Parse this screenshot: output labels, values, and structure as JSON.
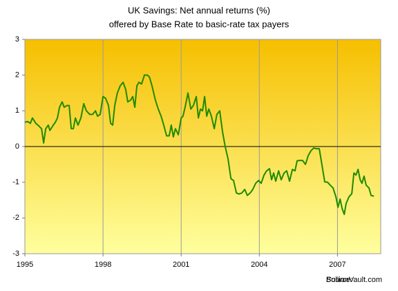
{
  "chart_data": {
    "type": "line",
    "title": "UK Savings: Net annual returns (%)",
    "subtitle": "offered by Base Rate to basic-rate tax payers",
    "source_label": "Source:",
    "source": "BullionVault.com",
    "xlim": [
      1995,
      2008.66
    ],
    "xticks": [
      1995,
      1998,
      2001,
      2004,
      2007
    ],
    "ylim": [
      -3,
      3
    ],
    "yticks": [
      -3,
      -2,
      -1,
      0,
      1,
      2,
      3
    ],
    "grid": "x",
    "series": [
      {
        "color": "#1f8a00",
        "x": [
          1995.0,
          1995.11,
          1995.21,
          1995.29,
          1995.42,
          1995.53,
          1995.64,
          1995.72,
          1995.8,
          1995.9,
          1995.96,
          1996.09,
          1996.17,
          1996.25,
          1996.33,
          1996.43,
          1996.51,
          1996.62,
          1996.7,
          1996.78,
          1996.86,
          1996.94,
          1997.04,
          1997.15,
          1997.26,
          1997.36,
          1997.49,
          1997.6,
          1997.71,
          1997.79,
          1997.89,
          1998.0,
          1998.1,
          1998.21,
          1998.29,
          1998.37,
          1998.45,
          1998.55,
          1998.66,
          1998.77,
          1998.87,
          1998.95,
          1999.06,
          1999.14,
          1999.22,
          1999.3,
          1999.38,
          1999.48,
          1999.59,
          1999.7,
          1999.78,
          1999.88,
          2000.01,
          2000.12,
          2000.23,
          2000.33,
          2000.44,
          2000.54,
          2000.62,
          2000.7,
          2000.78,
          2000.89,
          2001.0,
          2001.07,
          2001.15,
          2001.26,
          2001.37,
          2001.47,
          2001.58,
          2001.66,
          2001.74,
          2001.82,
          2001.9,
          2001.98,
          2002.06,
          2002.16,
          2002.27,
          2002.37,
          2002.48,
          2002.59,
          2002.69,
          2002.8,
          2002.91,
          2003.01,
          2003.12,
          2003.22,
          2003.33,
          2003.44,
          2003.54,
          2003.65,
          2003.75,
          2003.86,
          2003.97,
          2004.07,
          2004.18,
          2004.28,
          2004.39,
          2004.47,
          2004.55,
          2004.63,
          2004.74,
          2004.84,
          2004.95,
          2005.05,
          2005.16,
          2005.27,
          2005.37,
          2005.45,
          2005.56,
          2005.66,
          2005.77,
          2005.88,
          2005.98,
          2006.09,
          2006.19,
          2006.3,
          2006.41,
          2006.51,
          2006.62,
          2006.72,
          2006.83,
          2006.94,
          2007.02,
          2007.1,
          2007.18,
          2007.26,
          2007.33,
          2007.44,
          2007.55,
          2007.63,
          2007.71,
          2007.79,
          2007.87,
          2007.94,
          2008.02,
          2008.1,
          2008.21,
          2008.29,
          2008.4
        ],
        "values": [
          0.68,
          0.7,
          0.65,
          0.8,
          0.65,
          0.58,
          0.5,
          0.1,
          0.5,
          0.6,
          0.45,
          0.6,
          0.68,
          0.8,
          1.1,
          1.25,
          1.1,
          1.15,
          1.15,
          0.5,
          0.5,
          0.8,
          0.6,
          0.8,
          1.2,
          1.0,
          0.9,
          0.9,
          1.0,
          0.85,
          0.9,
          1.4,
          1.35,
          1.15,
          0.65,
          0.6,
          1.15,
          1.5,
          1.7,
          1.8,
          1.6,
          1.25,
          1.3,
          1.4,
          1.1,
          1.7,
          1.8,
          1.75,
          2.0,
          2.0,
          1.95,
          1.7,
          1.3,
          1.05,
          0.85,
          0.6,
          0.3,
          0.3,
          0.6,
          0.27,
          0.5,
          0.33,
          0.8,
          0.85,
          1.1,
          1.5,
          1.05,
          1.15,
          1.4,
          0.8,
          1.05,
          1.0,
          1.4,
          0.85,
          1.05,
          0.85,
          0.5,
          0.9,
          1.0,
          0.4,
          0.0,
          -0.35,
          -0.9,
          -0.95,
          -1.3,
          -1.33,
          -1.3,
          -1.2,
          -1.37,
          -1.3,
          -1.2,
          -1.03,
          -0.95,
          -1.03,
          -0.8,
          -0.68,
          -0.62,
          -0.93,
          -0.74,
          -0.97,
          -0.68,
          -0.93,
          -0.74,
          -0.68,
          -0.97,
          -0.64,
          -0.68,
          -0.4,
          -0.39,
          -0.39,
          -0.5,
          -0.25,
          -0.12,
          -0.04,
          -0.06,
          -0.06,
          -0.54,
          -0.99,
          -1.0,
          -1.08,
          -1.16,
          -1.41,
          -1.7,
          -1.47,
          -1.74,
          -1.9,
          -1.6,
          -1.41,
          -1.32,
          -0.74,
          -0.8,
          -0.64,
          -0.93,
          -1.03,
          -0.83,
          -1.08,
          -1.16,
          -1.37,
          -1.39
        ]
      }
    ]
  }
}
